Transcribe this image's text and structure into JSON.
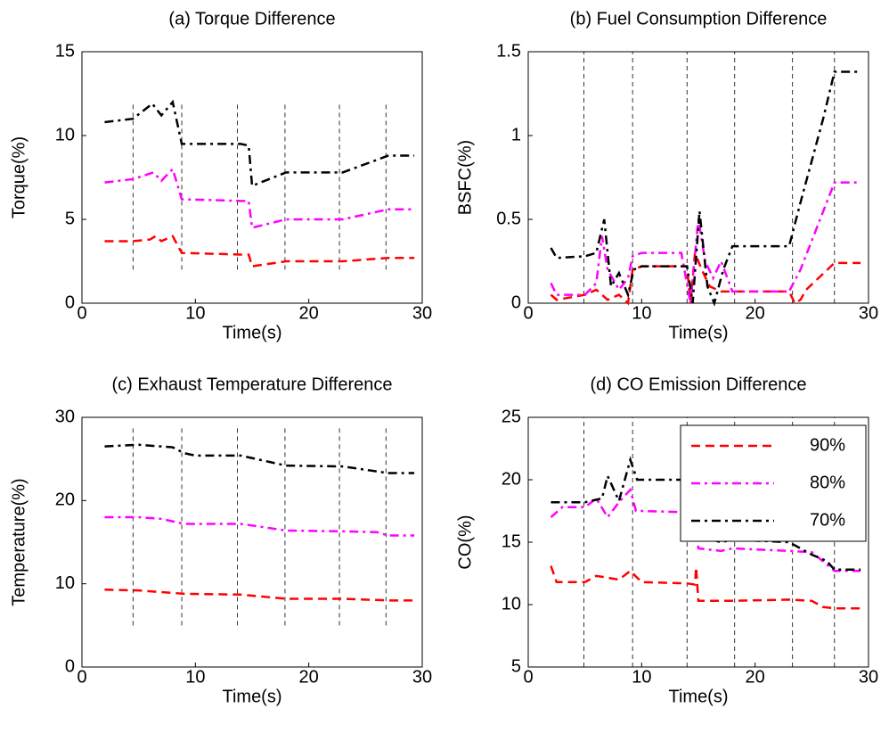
{
  "chart_data": [
    {
      "type": "line",
      "title": "(a) Torque Difference",
      "xlabel": "Time(s)",
      "ylabel": "Torque(%)",
      "xlim": [
        0,
        30
      ],
      "xticks": [
        0,
        10,
        20,
        30
      ],
      "ylim": [
        0,
        15
      ],
      "yticks": [
        0,
        5,
        10,
        15
      ],
      "vlines": [
        4.5,
        8.8,
        13.7,
        17.9,
        22.7,
        26.8
      ],
      "vline_range": [
        2,
        12
      ],
      "series": [
        {
          "color": "#ff0000",
          "style": "dashed",
          "x": [
            2,
            4.5,
            6,
            6.5,
            7,
            8,
            8.8,
            14,
            14.7,
            15,
            18,
            23,
            27,
            29.3
          ],
          "values": [
            3.7,
            3.7,
            3.8,
            4.0,
            3.7,
            4.0,
            3.0,
            2.9,
            2.9,
            2.2,
            2.5,
            2.5,
            2.7,
            2.7
          ]
        },
        {
          "color": "#ff00ff",
          "style": "dashdot",
          "x": [
            2,
            4.5,
            6.3,
            7,
            8,
            8.8,
            14,
            14.7,
            15,
            18,
            23,
            27,
            29.3
          ],
          "values": [
            7.2,
            7.4,
            7.8,
            7.3,
            8.0,
            6.2,
            6.1,
            6.1,
            4.5,
            5.0,
            5.0,
            5.6,
            5.6
          ]
        },
        {
          "color": "#000000",
          "style": "dashdot",
          "x": [
            2,
            4.5,
            6.2,
            7,
            8,
            8.8,
            14,
            14.7,
            15,
            18,
            23,
            27,
            29.3
          ],
          "values": [
            10.8,
            11.0,
            11.9,
            11.2,
            12.0,
            9.5,
            9.5,
            9.4,
            7.0,
            7.8,
            7.8,
            8.8,
            8.8
          ]
        }
      ]
    },
    {
      "type": "line",
      "title": "(b) Fuel Consumption Difference",
      "xlabel": "Time(s)",
      "ylabel": "BSFC(%)",
      "xlim": [
        0,
        30
      ],
      "xticks": [
        0,
        10,
        20,
        30
      ],
      "ylim": [
        0,
        1.5
      ],
      "yticks": [
        0,
        0.5,
        1,
        1.5
      ],
      "vlines": [
        4.9,
        9.2,
        14,
        18.2,
        23.3,
        27
      ],
      "vline_range": [
        0,
        1.5
      ],
      "series": [
        {
          "color": "#ff0000",
          "style": "dashed",
          "x": [
            2,
            2.5,
            5,
            6,
            7,
            8,
            8.8,
            9.2,
            10,
            14,
            14.3,
            14.7,
            15,
            15.3,
            16,
            17,
            18,
            23,
            23.5,
            24,
            24.5,
            27,
            29.3
          ],
          "values": [
            0.05,
            0.02,
            0.05,
            0.08,
            0.02,
            0.05,
            0,
            0.2,
            0.22,
            0.22,
            0,
            0.3,
            0.25,
            0.2,
            0.1,
            0.07,
            0.07,
            0.07,
            0,
            0.02,
            0.08,
            0.24,
            0.24
          ]
        },
        {
          "color": "#ff00ff",
          "style": "dashdot",
          "x": [
            2,
            2.5,
            5,
            6,
            6.5,
            7,
            8,
            8.8,
            9.2,
            10,
            13.5,
            14.3,
            15,
            15.6,
            16.3,
            17,
            18,
            23,
            24,
            27,
            29.3
          ],
          "values": [
            0.12,
            0.05,
            0.05,
            0.12,
            0.4,
            0.2,
            0.08,
            0.15,
            0.28,
            0.3,
            0.3,
            0,
            0.5,
            0.25,
            0.15,
            0.25,
            0.07,
            0.07,
            0.2,
            0.72,
            0.72
          ]
        },
        {
          "color": "#000000",
          "style": "dashdot",
          "x": [
            2,
            2.5,
            5,
            6,
            6.7,
            7.3,
            8,
            8.8,
            9.3,
            10,
            14,
            14.5,
            15.1,
            15.8,
            16.4,
            17.2,
            18,
            23,
            24,
            26,
            27,
            29.3
          ],
          "values": [
            0.33,
            0.27,
            0.28,
            0.3,
            0.5,
            0.1,
            0.18,
            0.05,
            0.2,
            0.22,
            0.22,
            0,
            0.55,
            0.1,
            0,
            0.2,
            0.34,
            0.34,
            0.6,
            1.1,
            1.38,
            1.38
          ]
        }
      ]
    },
    {
      "type": "line",
      "title": "(c) Exhaust Temperature Difference",
      "xlabel": "Time(s)",
      "ylabel": "Temperature(%)",
      "xlim": [
        0,
        30
      ],
      "xticks": [
        0,
        10,
        20,
        30
      ],
      "ylim": [
        0,
        30
      ],
      "yticks": [
        0,
        10,
        20,
        30
      ],
      "vlines": [
        4.5,
        8.8,
        13.7,
        17.9,
        22.7,
        26.8
      ],
      "vline_range": [
        5,
        29
      ],
      "series": [
        {
          "color": "#ff0000",
          "style": "dashed",
          "x": [
            2,
            5,
            9,
            14,
            18,
            23,
            27,
            29.3
          ],
          "values": [
            9.3,
            9.2,
            8.8,
            8.7,
            8.2,
            8.2,
            8.0,
            8.0
          ]
        },
        {
          "color": "#ff00ff",
          "style": "dashdot",
          "x": [
            2,
            5,
            7,
            9,
            14,
            18,
            23,
            26,
            27,
            29.3
          ],
          "values": [
            18.0,
            18.0,
            17.8,
            17.2,
            17.2,
            16.4,
            16.3,
            16.2,
            15.8,
            15.8
          ]
        },
        {
          "color": "#000000",
          "style": "dashdot",
          "x": [
            2,
            5,
            8,
            9,
            10,
            14,
            18,
            23,
            27,
            29.3
          ],
          "values": [
            26.5,
            26.7,
            26.4,
            25.7,
            25.4,
            25.4,
            24.2,
            24.1,
            23.3,
            23.3
          ]
        }
      ]
    },
    {
      "type": "line",
      "title": "(d) CO Emission Difference",
      "xlabel": "Time(s)",
      "ylabel": "CO(%)",
      "xlim": [
        0,
        30
      ],
      "xticks": [
        0,
        10,
        20,
        30
      ],
      "ylim": [
        5,
        25
      ],
      "yticks": [
        5,
        10,
        15,
        20,
        25
      ],
      "vlines": [
        4.9,
        9.2,
        14,
        18.2,
        23.3,
        27
      ],
      "vline_range": [
        5,
        25
      ],
      "legend": "upper right",
      "series": [
        {
          "name": "90%",
          "color": "#ff0000",
          "style": "dashed",
          "x": [
            2,
            2.5,
            5,
            6,
            8,
            9,
            10,
            14,
            14.7,
            14.8,
            15,
            18,
            23,
            25,
            26,
            27,
            29.3
          ],
          "values": [
            13.1,
            11.8,
            11.8,
            12.3,
            12.0,
            12.7,
            11.8,
            11.7,
            11.6,
            13.0,
            10.3,
            10.3,
            10.4,
            10.3,
            9.8,
            9.7,
            9.7
          ]
        },
        {
          "name": "80%",
          "color": "#ff00ff",
          "style": "dashdot",
          "x": [
            2,
            3,
            5,
            6,
            7,
            8,
            9,
            9.5,
            10,
            14,
            14.7,
            15,
            17,
            18,
            23,
            25,
            27,
            29.3
          ],
          "values": [
            17.0,
            17.8,
            17.8,
            18.5,
            17.0,
            18.2,
            19.2,
            17.5,
            17.5,
            17.4,
            17.5,
            14.5,
            14.3,
            14.5,
            14.3,
            14.2,
            12.7,
            12.7
          ]
        },
        {
          "name": "70%",
          "color": "#000000",
          "style": "dashdot",
          "x": [
            2,
            5,
            6.5,
            7,
            8,
            9,
            9.6,
            14,
            14.6,
            15,
            17,
            18,
            23,
            25,
            26.3,
            27,
            29.3
          ],
          "values": [
            18.2,
            18.2,
            18.5,
            20.3,
            18.3,
            21.6,
            20.0,
            20.0,
            20.8,
            15.5,
            15.0,
            15.2,
            15.0,
            14.0,
            13.5,
            12.8,
            12.8
          ]
        }
      ]
    }
  ]
}
